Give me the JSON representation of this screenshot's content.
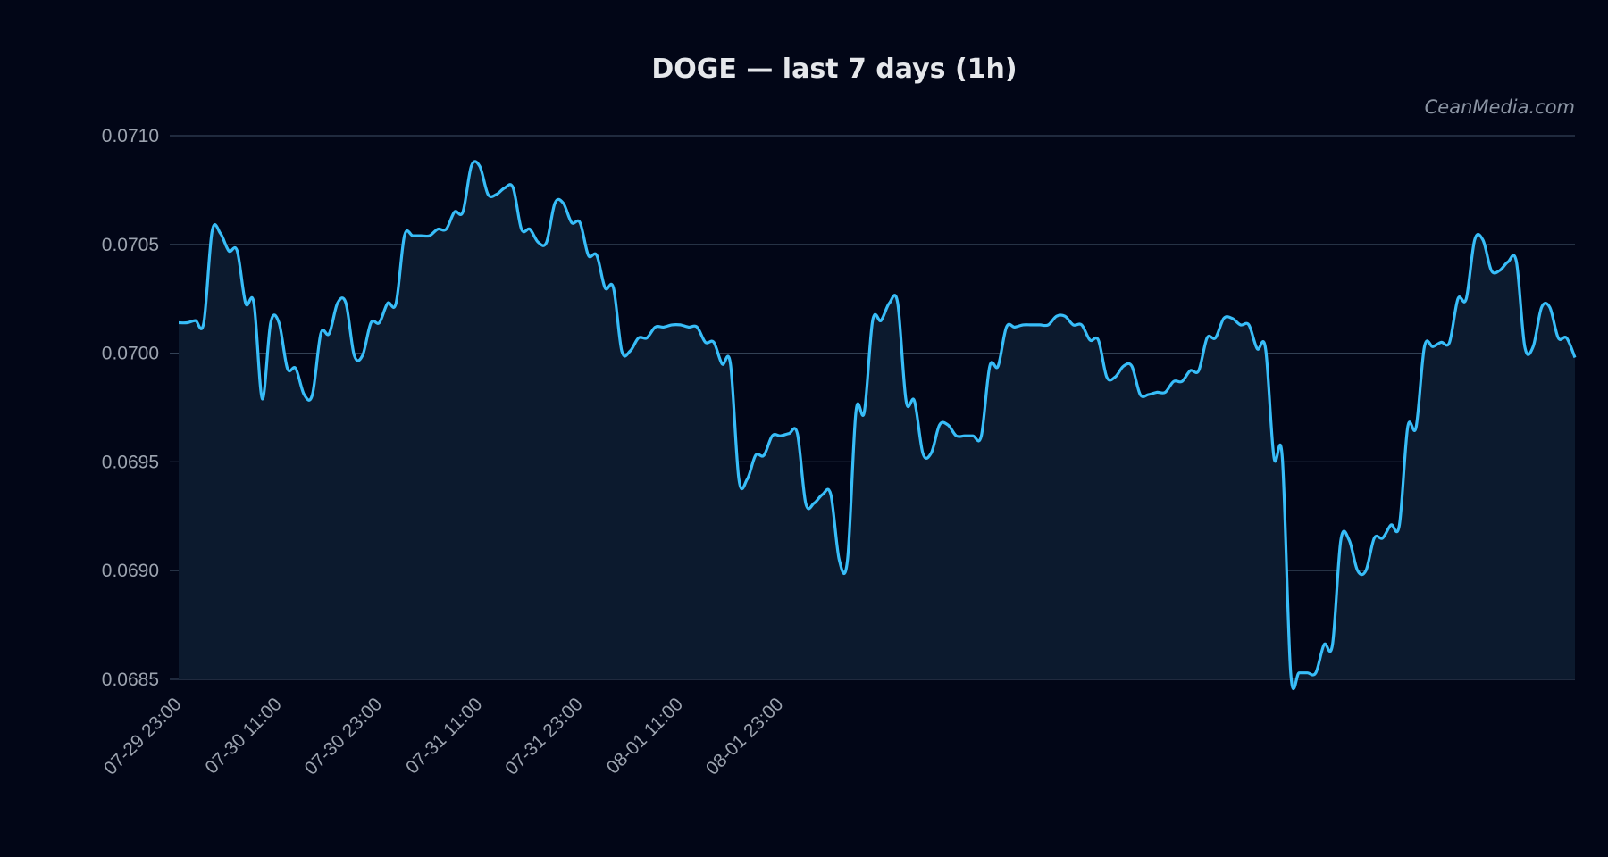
{
  "chart_data": {
    "type": "line",
    "title": "DOGE — last 7 days (1h)",
    "watermark": "CeanMedia.com",
    "xlabel": "",
    "ylabel": "",
    "ylim": [
      0.0685,
      0.071
    ],
    "yticks": [
      "0.0685",
      "0.0690",
      "0.0695",
      "0.0700",
      "0.0705",
      "0.0710"
    ],
    "xticks": [
      "07-29 23:00",
      "07-30 11:00",
      "07-30 23:00",
      "07-31 11:00",
      "07-31 23:00",
      "08-01 11:00",
      "08-01 23:00"
    ],
    "grid": true,
    "legend": "none",
    "line_color": "#38bdf8",
    "fill_color": "#0c1a2e",
    "series": [
      {
        "values": [
          0.07014,
          0.07014,
          0.07015,
          0.07014,
          0.07056,
          0.07055,
          0.07047,
          0.07047,
          0.07023,
          0.07023,
          0.06979,
          0.07014,
          0.07014,
          0.06993,
          0.06993,
          0.06981,
          0.06981,
          0.07009,
          0.07009,
          0.07023,
          0.07023,
          0.06999,
          0.06999,
          0.07014,
          0.07014,
          0.07023,
          0.07023,
          0.07054,
          0.07054,
          0.07054,
          0.07054,
          0.07057,
          0.07057,
          0.07065,
          0.07065,
          0.07086,
          0.07086,
          0.07073,
          0.07073,
          0.07076,
          0.07076,
          0.07057,
          0.07057,
          0.07051,
          0.07051,
          0.07069,
          0.07069,
          0.0706,
          0.0706,
          0.07045,
          0.07045,
          0.0703,
          0.0703,
          0.07001,
          0.07001,
          0.07007,
          0.07007,
          0.07012,
          0.07012,
          0.07013,
          0.07013,
          0.07012,
          0.07012,
          0.07005,
          0.07005,
          0.06995,
          0.06995,
          0.06942,
          0.06942,
          0.06953,
          0.06953,
          0.06962,
          0.06962,
          0.06963,
          0.06963,
          0.06931,
          0.06931,
          0.06935,
          0.06935,
          0.06905,
          0.06905,
          0.06973,
          0.06973,
          0.07015,
          0.07015,
          0.07023,
          0.07023,
          0.06978,
          0.06978,
          0.06954,
          0.06954,
          0.06967,
          0.06967,
          0.06962,
          0.06962,
          0.06962,
          0.06962,
          0.06994,
          0.06994,
          0.07012,
          0.07012,
          0.07013,
          0.07013,
          0.07013,
          0.07013,
          0.07017,
          0.07017,
          0.07013,
          0.07013,
          0.07006,
          0.07006,
          0.06989,
          0.06989,
          0.06994,
          0.06994,
          0.06981,
          0.06981,
          0.06982,
          0.06982,
          0.06987,
          0.06987,
          0.06992,
          0.06992,
          0.07007,
          0.07007,
          0.07016,
          0.07016,
          0.07013,
          0.07013,
          0.07002,
          0.07002,
          0.06952,
          0.06952,
          0.06853,
          0.06853,
          0.06853,
          0.06853,
          0.06866,
          0.06866,
          0.06914,
          0.06914,
          0.069,
          0.069,
          0.06915,
          0.06915,
          0.06921,
          0.06921,
          0.06966,
          0.06966,
          0.07003,
          0.07003,
          0.07005,
          0.07005,
          0.07025,
          0.07025,
          0.07052,
          0.07052,
          0.07038,
          0.07038,
          0.07042,
          0.07042,
          0.07003,
          0.07003,
          0.07021,
          0.07021,
          0.07007,
          0.07007,
          0.06998
        ]
      }
    ]
  }
}
